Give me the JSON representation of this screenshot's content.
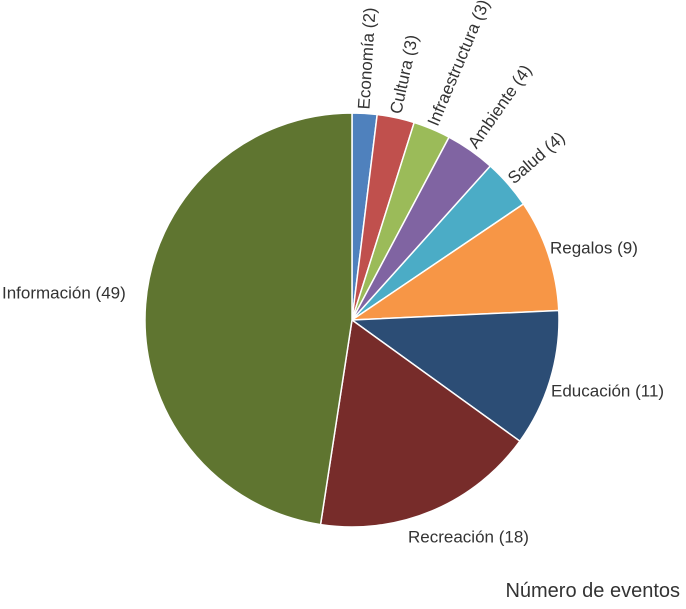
{
  "chart_data": {
    "type": "pie",
    "title": "",
    "caption": "Número de eventos",
    "start": "12 o'clock",
    "direction": "clockwise",
    "slices": [
      {
        "label": "Economía (2)",
        "category": "Economía",
        "value": 2,
        "color": "#4f81bd"
      },
      {
        "label": "Cultura (3)",
        "category": "Cultura",
        "value": 3,
        "color": "#c0504d"
      },
      {
        "label": "Infraestructura (3)",
        "category": "Infraestructura",
        "value": 3,
        "color": "#9bbb59"
      },
      {
        "label": "Ambiente (4)",
        "category": "Ambiente",
        "value": 4,
        "color": "#8064a2"
      },
      {
        "label": "Salud (4)",
        "category": "Salud",
        "value": 4,
        "color": "#4bacc6"
      },
      {
        "label": "Regalos (9)",
        "category": "Regalos",
        "value": 9,
        "color": "#f79646"
      },
      {
        "label": "Educación (11)",
        "category": "Educación",
        "value": 11,
        "color": "#2c4d75"
      },
      {
        "label": "Recreación (18)",
        "category": "Recreación",
        "value": 18,
        "color": "#772c2a"
      },
      {
        "label": "Información (49)",
        "category": "Información",
        "value": 49,
        "color": "#5f7530"
      }
    ]
  }
}
